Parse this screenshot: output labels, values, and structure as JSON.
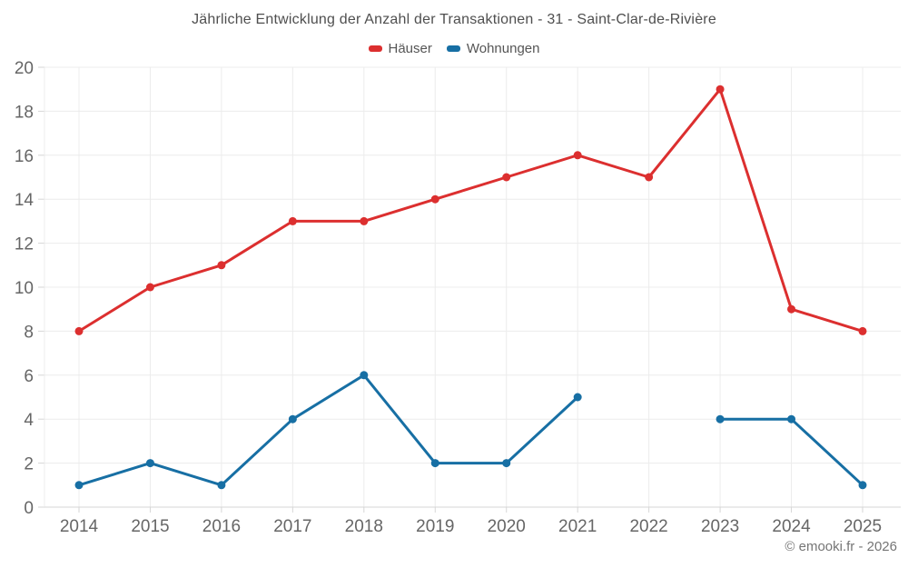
{
  "chart_data": {
    "type": "line",
    "title": "Jährliche Entwicklung der Anzahl der Transaktionen - 31 - Saint-Clar-de-Rivière",
    "categories": [
      "2014",
      "2015",
      "2016",
      "2017",
      "2018",
      "2019",
      "2020",
      "2021",
      "2022",
      "2023",
      "2024",
      "2025"
    ],
    "series": [
      {
        "name": "Häuser",
        "color": "#dc2f2f",
        "values": [
          8,
          10,
          11,
          13,
          13,
          14,
          15,
          16,
          15,
          19,
          9,
          8
        ]
      },
      {
        "name": "Wohnungen",
        "color": "#176fa4",
        "values": [
          1,
          2,
          1,
          4,
          6,
          2,
          2,
          5,
          null,
          4,
          4,
          1
        ]
      }
    ],
    "xlabel": "",
    "ylabel": "",
    "ylim": [
      0,
      20
    ],
    "ytick_step": 2,
    "grid": true,
    "legend_position": "top",
    "grid_color": "#ececec",
    "axis_color": "#d6d6d6",
    "tick_color": "#d6d6d6",
    "text_color": "#666666",
    "title_color": "#4f4f4f"
  },
  "footer": {
    "text": "© emooki.fr - 2026"
  }
}
